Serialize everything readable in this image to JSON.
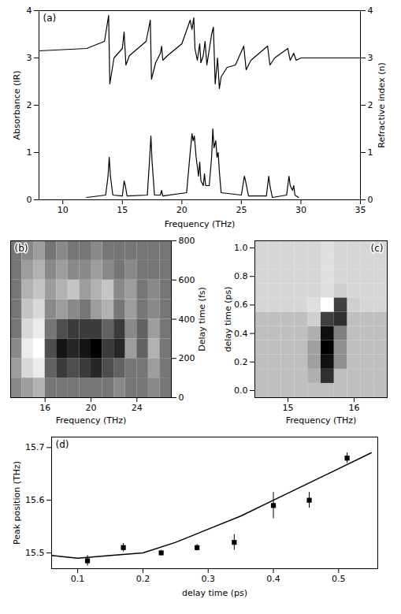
{
  "chart_data": [
    {
      "type": "line",
      "title": "(a)",
      "x_label": "Frequency (THz)",
      "y_label": "Absorbance (IR)",
      "y2_label": "Refractive index (n)",
      "xlim": [
        8,
        35
      ],
      "xticks": [
        10,
        15,
        20,
        25,
        30,
        35
      ],
      "ylim": [
        0,
        4
      ],
      "yticks": [
        0,
        1,
        2,
        3,
        4
      ],
      "y2lim": [
        0,
        4
      ],
      "y2ticks": [
        0,
        1,
        2,
        3,
        4
      ],
      "series": [
        {
          "axis": "y",
          "color": "#000000",
          "x": [
            12.0,
            13.6,
            13.8,
            13.9,
            14.0,
            14.2,
            15.0,
            15.15,
            15.25,
            15.4,
            17.1,
            17.3,
            17.4,
            17.5,
            17.7,
            18.2,
            18.3,
            18.4,
            20.4,
            20.7,
            20.85,
            20.95,
            21.05,
            21.2,
            21.4,
            21.5,
            21.6,
            21.8,
            21.9,
            22.0,
            22.3,
            22.5,
            22.6,
            22.7,
            22.85,
            22.95,
            23.05,
            23.15,
            23.3,
            25.0,
            25.25,
            25.35,
            25.6,
            27.1,
            27.3,
            27.4,
            27.6,
            28.8,
            29.0,
            29.1,
            29.3,
            29.4,
            29.5,
            29.8
          ],
          "values": [
            0.05,
            0.1,
            0.5,
            0.9,
            0.5,
            0.1,
            0.08,
            0.4,
            0.3,
            0.08,
            0.1,
            0.9,
            1.35,
            0.8,
            0.1,
            0.1,
            0.2,
            0.08,
            0.15,
            1.0,
            1.4,
            1.25,
            1.35,
            0.9,
            0.5,
            0.8,
            0.4,
            0.3,
            0.55,
            0.3,
            0.3,
            0.9,
            1.5,
            1.1,
            1.25,
            0.9,
            1.0,
            0.6,
            0.15,
            0.1,
            0.5,
            0.4,
            0.08,
            0.08,
            0.5,
            0.3,
            0.05,
            0.1,
            0.5,
            0.3,
            0.2,
            0.3,
            0.1,
            0.05
          ]
        },
        {
          "axis": "y2",
          "color": "#000000",
          "x": [
            8,
            12,
            13.5,
            13.85,
            13.95,
            14.3,
            15.0,
            15.15,
            15.3,
            15.6,
            17.0,
            17.35,
            17.45,
            17.8,
            18.2,
            18.3,
            18.4,
            18.8,
            20.0,
            20.7,
            20.85,
            21.0,
            21.1,
            21.3,
            21.5,
            21.6,
            21.8,
            21.95,
            22.1,
            22.5,
            22.65,
            22.8,
            23.0,
            23.15,
            23.3,
            23.8,
            24.5,
            25.2,
            25.4,
            25.8,
            27.2,
            27.4,
            27.8,
            28.9,
            29.1,
            29.4,
            29.6,
            30,
            35
          ],
          "values": [
            3.15,
            3.2,
            3.35,
            3.9,
            2.45,
            3.0,
            3.2,
            3.55,
            2.85,
            3.05,
            3.35,
            3.8,
            2.55,
            2.9,
            3.1,
            3.25,
            2.95,
            3.05,
            3.3,
            3.8,
            3.6,
            3.85,
            3.2,
            2.95,
            3.3,
            2.9,
            3.05,
            3.35,
            2.85,
            3.5,
            3.65,
            2.45,
            3.0,
            2.35,
            2.6,
            2.8,
            2.85,
            3.25,
            2.75,
            2.95,
            3.25,
            2.85,
            3.0,
            3.2,
            2.95,
            3.1,
            2.95,
            3.0,
            3.0
          ]
        }
      ]
    },
    {
      "type": "heatmap",
      "title": "(b)",
      "x_label": "Frequency (THz)",
      "y_label": "Delay time (fs)",
      "xlim": [
        13,
        27
      ],
      "xticks": [
        16,
        20,
        24
      ],
      "ylim": [
        0,
        800
      ],
      "yticks": [
        0,
        200,
        400,
        600,
        800
      ],
      "x_bins": [
        13,
        14,
        15,
        16,
        17,
        18,
        19,
        20,
        21,
        22,
        23,
        24,
        25,
        26,
        27
      ],
      "y_bins": [
        0,
        100,
        200,
        300,
        400,
        500,
        600,
        700,
        800
      ],
      "cells": [
        [
          0.5,
          0.55,
          0.6,
          0.45,
          0.45,
          0.45,
          0.45,
          0.45,
          0.45,
          0.5,
          0.45,
          0.45,
          0.5,
          0.45
        ],
        [
          0.55,
          0.7,
          0.75,
          0.4,
          0.3,
          0.35,
          0.3,
          0.25,
          0.35,
          0.4,
          0.45,
          0.45,
          0.55,
          0.45
        ],
        [
          0.5,
          0.75,
          0.8,
          0.35,
          0.2,
          0.25,
          0.2,
          0.15,
          0.3,
          0.25,
          0.55,
          0.4,
          0.6,
          0.45
        ],
        [
          0.45,
          0.7,
          0.75,
          0.45,
          0.35,
          0.3,
          0.3,
          0.3,
          0.4,
          0.3,
          0.5,
          0.4,
          0.55,
          0.45
        ],
        [
          0.45,
          0.65,
          0.7,
          0.5,
          0.55,
          0.5,
          0.45,
          0.55,
          0.6,
          0.45,
          0.55,
          0.45,
          0.5,
          0.45
        ],
        [
          0.45,
          0.6,
          0.65,
          0.55,
          0.6,
          0.65,
          0.55,
          0.6,
          0.65,
          0.5,
          0.55,
          0.45,
          0.5,
          0.45
        ],
        [
          0.45,
          0.55,
          0.6,
          0.5,
          0.55,
          0.5,
          0.5,
          0.55,
          0.5,
          0.45,
          0.5,
          0.45,
          0.45,
          0.45
        ],
        [
          0.45,
          0.5,
          0.55,
          0.45,
          0.5,
          0.45,
          0.45,
          0.5,
          0.45,
          0.45,
          0.45,
          0.45,
          0.45,
          0.45
        ]
      ]
    },
    {
      "type": "heatmap",
      "title": "(c)",
      "x_label": "Frequency (THz)",
      "y_label": "delay time (ps)",
      "xlim": [
        14.5,
        16.5
      ],
      "xticks": [
        15,
        16
      ],
      "ylim": [
        -0.05,
        1.05
      ],
      "yticks": [
        {
          "value": 0,
          "label": "0.0"
        },
        {
          "value": 0.2,
          "label": "0.2"
        },
        {
          "value": 0.4,
          "label": "0.4"
        },
        {
          "value": 0.6,
          "label": "0.6"
        },
        {
          "value": 0.8,
          "label": "0.8"
        },
        {
          "value": 1,
          "label": "1.0"
        }
      ],
      "x_bins": [
        14.5,
        14.7,
        14.9,
        15.1,
        15.3,
        15.5,
        15.7,
        15.9,
        16.1,
        16.3,
        16.5
      ],
      "y_bins": [
        -0.05,
        0.05,
        0.15,
        0.25,
        0.35,
        0.45,
        0.55,
        0.65,
        0.75,
        0.85,
        0.95,
        1.05
      ],
      "cells": [
        [
          0.75,
          0.75,
          0.75,
          0.75,
          0.75,
          0.75,
          0.75,
          0.75,
          0.75,
          0.75
        ],
        [
          0.75,
          0.75,
          0.75,
          0.75,
          0.7,
          0.3,
          0.75,
          0.75,
          0.75,
          0.75
        ],
        [
          0.75,
          0.75,
          0.75,
          0.75,
          0.65,
          0.2,
          0.6,
          0.75,
          0.75,
          0.75
        ],
        [
          0.75,
          0.75,
          0.75,
          0.75,
          0.65,
          0.15,
          0.6,
          0.75,
          0.75,
          0.75
        ],
        [
          0.75,
          0.75,
          0.75,
          0.75,
          0.7,
          0.2,
          0.55,
          0.75,
          0.75,
          0.75
        ],
        [
          0.75,
          0.75,
          0.75,
          0.75,
          0.8,
          0.35,
          0.3,
          0.75,
          0.75,
          0.75
        ],
        [
          0.82,
          0.82,
          0.82,
          0.82,
          0.85,
          0.95,
          0.35,
          0.8,
          0.82,
          0.82
        ],
        [
          0.82,
          0.82,
          0.82,
          0.82,
          0.82,
          0.85,
          0.8,
          0.82,
          0.82,
          0.82
        ],
        [
          0.82,
          0.82,
          0.82,
          0.82,
          0.82,
          0.85,
          0.82,
          0.82,
          0.82,
          0.82
        ],
        [
          0.82,
          0.82,
          0.82,
          0.82,
          0.82,
          0.85,
          0.82,
          0.82,
          0.82,
          0.82
        ],
        [
          0.82,
          0.82,
          0.82,
          0.82,
          0.82,
          0.85,
          0.82,
          0.82,
          0.82,
          0.82
        ]
      ]
    },
    {
      "type": "scatter",
      "title": "(d)",
      "x_label": "delay time (ps)",
      "y_label": "Peak position (THz)",
      "xlim": [
        0.06,
        0.56
      ],
      "xticks": [
        0.1,
        0.2,
        0.3,
        0.4,
        0.5
      ],
      "ylim": [
        15.47,
        15.72
      ],
      "yticks": [
        15.5,
        15.6,
        15.7
      ],
      "series": [
        {
          "type": "scatter",
          "marker": "square",
          "color": "#000000",
          "x": [
            0.115,
            0.17,
            0.228,
            0.283,
            0.34,
            0.4,
            0.455,
            0.513
          ],
          "values": [
            15.485,
            15.51,
            15.5,
            15.51,
            15.52,
            15.59,
            15.6,
            15.68
          ],
          "errors": [
            0.01,
            0.008,
            0.005,
            0.006,
            0.015,
            0.025,
            0.015,
            0.01
          ]
        },
        {
          "type": "line",
          "color": "#000000",
          "x": [
            0.06,
            0.1,
            0.15,
            0.2,
            0.25,
            0.3,
            0.35,
            0.4,
            0.45,
            0.5,
            0.55
          ],
          "values": [
            15.495,
            15.49,
            15.495,
            15.5,
            15.52,
            15.545,
            15.57,
            15.6,
            15.63,
            15.66,
            15.69
          ]
        }
      ]
    }
  ]
}
